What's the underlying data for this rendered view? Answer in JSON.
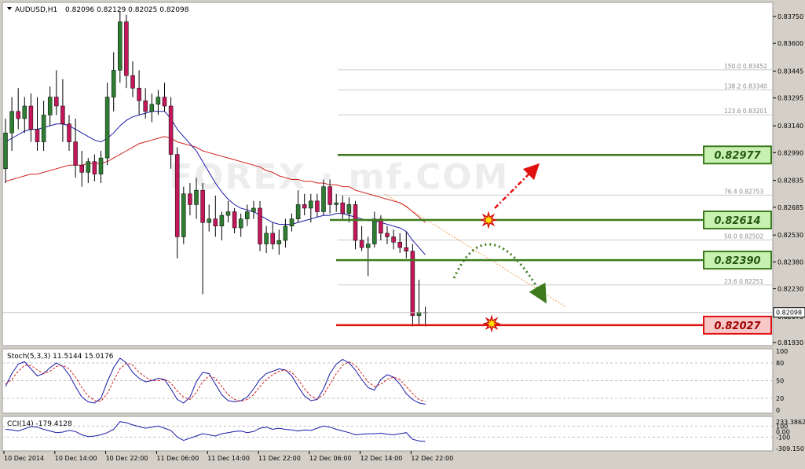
{
  "header": {
    "symbol": "AUDUSD,H1",
    "ohlc": "0.82096 0.82129 0.82025 0.82098"
  },
  "colors": {
    "bull": "#2e7d32",
    "bear": "#c2185b",
    "ma_fast": "#1a1aa8",
    "ma_slow": "#d02020",
    "level_green": "#3c7a1c",
    "level_red": "#e01010",
    "label_green_fill": "#c8f0b0",
    "label_red_fill": "#f8c8c8",
    "fib_line": "#cccccc",
    "trend": "#f0a050"
  },
  "watermark": "FOREX · mf.COM",
  "chart_data": [
    {
      "type": "candlestick",
      "panel": "main",
      "ylim": [
        0.8193,
        0.8382
      ],
      "price_ticks": [
        "0.83750",
        "0.83600",
        "0.83445",
        "0.83295",
        "0.83140",
        "0.82990",
        "0.82835",
        "0.82685",
        "0.82530",
        "0.82380",
        "0.82230",
        "0.82075",
        "0.81930"
      ],
      "current_price": "0.82098",
      "x_ticks": [
        "10 Dec 2014",
        "10 Dec 14:00",
        "10 Dec 22:00",
        "11 Dec 06:00",
        "11 Dec 14:00",
        "11 Dec 22:00",
        "12 Dec 06:00",
        "12 Dec 14:00",
        "12 Dec 22:00"
      ],
      "candles": [
        [
          0.829,
          0.8318,
          0.8282,
          0.831
        ],
        [
          0.831,
          0.833,
          0.83,
          0.8322
        ],
        [
          0.8322,
          0.8335,
          0.8312,
          0.8318
        ],
        [
          0.8318,
          0.833,
          0.831,
          0.8325
        ],
        [
          0.8325,
          0.8332,
          0.8305,
          0.8312
        ],
        [
          0.8312,
          0.833,
          0.83,
          0.8305
        ],
        [
          0.8305,
          0.8328,
          0.83,
          0.832
        ],
        [
          0.832,
          0.8336,
          0.8314,
          0.833
        ],
        [
          0.833,
          0.8345,
          0.832,
          0.8325
        ],
        [
          0.8325,
          0.834,
          0.8305,
          0.8315
        ],
        [
          0.8315,
          0.832,
          0.83,
          0.8305
        ],
        [
          0.8305,
          0.8318,
          0.8285,
          0.8292
        ],
        [
          0.8292,
          0.83,
          0.828,
          0.8288
        ],
        [
          0.8288,
          0.8296,
          0.8282,
          0.8294
        ],
        [
          0.8294,
          0.8298,
          0.8283,
          0.8287
        ],
        [
          0.8287,
          0.83,
          0.8282,
          0.8296
        ],
        [
          0.8296,
          0.8338,
          0.8292,
          0.833
        ],
        [
          0.833,
          0.8355,
          0.8322,
          0.8345
        ],
        [
          0.8345,
          0.8378,
          0.8338,
          0.8372
        ],
        [
          0.8372,
          0.8376,
          0.8335,
          0.8342
        ],
        [
          0.8342,
          0.835,
          0.833,
          0.8335
        ],
        [
          0.8335,
          0.8345,
          0.832,
          0.8328
        ],
        [
          0.8328,
          0.8335,
          0.8318,
          0.8322
        ],
        [
          0.8322,
          0.8332,
          0.8316,
          0.8326
        ],
        [
          0.8326,
          0.8334,
          0.832,
          0.833
        ],
        [
          0.833,
          0.8338,
          0.8322,
          0.8325
        ],
        [
          0.8325,
          0.833,
          0.829,
          0.8298
        ],
        [
          0.8298,
          0.8302,
          0.824,
          0.8252
        ],
        [
          0.8252,
          0.828,
          0.8248,
          0.8276
        ],
        [
          0.8276,
          0.8282,
          0.8264,
          0.827
        ],
        [
          0.827,
          0.8285,
          0.8262,
          0.8278
        ],
        [
          0.8278,
          0.8282,
          0.822,
          0.826
        ],
        [
          0.826,
          0.827,
          0.8255,
          0.8262
        ],
        [
          0.8262,
          0.8275,
          0.8252,
          0.8258
        ],
        [
          0.8258,
          0.8266,
          0.825,
          0.8264
        ],
        [
          0.8264,
          0.8272,
          0.826,
          0.8266
        ],
        [
          0.8266,
          0.8268,
          0.8254,
          0.8257
        ],
        [
          0.8257,
          0.8265,
          0.8252,
          0.8262
        ],
        [
          0.8262,
          0.827,
          0.8258,
          0.8266
        ],
        [
          0.8266,
          0.8272,
          0.8262,
          0.8268
        ],
        [
          0.8268,
          0.8272,
          0.8244,
          0.8248
        ],
        [
          0.8248,
          0.8258,
          0.8243,
          0.8254
        ],
        [
          0.8254,
          0.826,
          0.8245,
          0.8248
        ],
        [
          0.8248,
          0.8256,
          0.8242,
          0.825
        ],
        [
          0.825,
          0.8262,
          0.8246,
          0.8258
        ],
        [
          0.8258,
          0.8265,
          0.8255,
          0.8262
        ],
        [
          0.8262,
          0.8278,
          0.826,
          0.827
        ],
        [
          0.827,
          0.8276,
          0.8264,
          0.8268
        ],
        [
          0.8268,
          0.8276,
          0.826,
          0.8272
        ],
        [
          0.8272,
          0.8276,
          0.8263,
          0.8266
        ],
        [
          0.8266,
          0.8284,
          0.8264,
          0.828
        ],
        [
          0.828,
          0.8284,
          0.8265,
          0.827
        ],
        [
          0.827,
          0.8276,
          0.8266,
          0.8271
        ],
        [
          0.8271,
          0.8275,
          0.8262,
          0.8265
        ],
        [
          0.8265,
          0.8274,
          0.826,
          0.827
        ],
        [
          0.827,
          0.8272,
          0.8245,
          0.825
        ],
        [
          0.825,
          0.8258,
          0.8244,
          0.8246
        ],
        [
          0.8246,
          0.8252,
          0.823,
          0.8248
        ],
        [
          0.8248,
          0.8266,
          0.8246,
          0.8262
        ],
        [
          0.8262,
          0.8264,
          0.825,
          0.8254
        ],
        [
          0.8254,
          0.8258,
          0.8248,
          0.8252
        ],
        [
          0.8252,
          0.8256,
          0.8245,
          0.8249
        ],
        [
          0.8249,
          0.8254,
          0.8243,
          0.8246
        ],
        [
          0.8246,
          0.8255,
          0.824,
          0.8244
        ],
        [
          0.8244,
          0.8248,
          0.8202,
          0.8208
        ],
        [
          0.8208,
          0.8228,
          0.8203,
          0.821
        ],
        [
          0.821,
          0.8213,
          0.8202,
          0.821
        ]
      ],
      "ma_fast": [
        0.8305,
        0.8307,
        0.8309,
        0.8311,
        0.8312,
        0.8312,
        0.8313,
        0.8314,
        0.8315,
        0.8315,
        0.8314,
        0.8312,
        0.831,
        0.8308,
        0.8306,
        0.8305,
        0.8307,
        0.831,
        0.8314,
        0.8317,
        0.8319,
        0.832,
        0.8321,
        0.8322,
        0.8322,
        0.8322,
        0.8318,
        0.8312,
        0.8308,
        0.8304,
        0.83,
        0.8294,
        0.8288,
        0.8282,
        0.8277,
        0.8273,
        0.827,
        0.8268,
        0.8267,
        0.8266,
        0.8264,
        0.8262,
        0.826,
        0.8259,
        0.8259,
        0.8259,
        0.826,
        0.8261,
        0.8262,
        0.8263,
        0.8264,
        0.8264,
        0.8265,
        0.8265,
        0.8264,
        0.8263,
        0.8262,
        0.8261,
        0.8261,
        0.826,
        0.8259,
        0.8258,
        0.8257,
        0.8255,
        0.825,
        0.8246,
        0.8242
      ],
      "ma_slow": [
        0.8283,
        0.8284,
        0.8285,
        0.8286,
        0.8287,
        0.8287,
        0.8288,
        0.8289,
        0.829,
        0.8291,
        0.8292,
        0.8292,
        0.8292,
        0.8293,
        0.8293,
        0.8293,
        0.8294,
        0.8296,
        0.8298,
        0.83,
        0.8302,
        0.8304,
        0.8305,
        0.8306,
        0.8307,
        0.8308,
        0.8307,
        0.8305,
        0.8304,
        0.8303,
        0.8302,
        0.83,
        0.8299,
        0.8298,
        0.8297,
        0.8296,
        0.8295,
        0.8294,
        0.8293,
        0.8292,
        0.8291,
        0.8289,
        0.8288,
        0.8286,
        0.8285,
        0.8284,
        0.8284,
        0.8283,
        0.8283,
        0.8282,
        0.8282,
        0.8281,
        0.8281,
        0.828,
        0.828,
        0.8278,
        0.8277,
        0.8276,
        0.8275,
        0.8274,
        0.8273,
        0.8272,
        0.8271,
        0.8269,
        0.8266,
        0.8263,
        0.826
      ],
      "fib_levels": [
        {
          "label": "150.0",
          "price": "0.83452"
        },
        {
          "label": "138.2",
          "price": "0.83340"
        },
        {
          "label": "123.6",
          "price": "0.83201"
        },
        {
          "label": "76.4",
          "price": "0.82753"
        },
        {
          "label": "50.0",
          "price": "0.82502"
        },
        {
          "label": "23.6",
          "price": "0.82251"
        }
      ],
      "levels": [
        {
          "value": "0.82977",
          "kind": "resistance"
        },
        {
          "value": "0.82614",
          "kind": "resistance"
        },
        {
          "value": "0.82390",
          "kind": "support"
        },
        {
          "value": "0.82027",
          "kind": "support"
        }
      ]
    },
    {
      "type": "line",
      "panel": "stochastic",
      "title": "Stoch(5,3,3) 11.5144 15.0176",
      "ylim": [
        0,
        100
      ],
      "y_ticks": [
        "100",
        "80",
        "50",
        "20",
        "0"
      ],
      "main": [
        40,
        62,
        78,
        82,
        70,
        58,
        62,
        72,
        80,
        74,
        60,
        40,
        22,
        14,
        12,
        20,
        48,
        72,
        88,
        80,
        64,
        54,
        48,
        50,
        54,
        52,
        36,
        18,
        12,
        22,
        48,
        64,
        62,
        44,
        26,
        16,
        14,
        16,
        22,
        36,
        52,
        62,
        66,
        70,
        68,
        58,
        40,
        24,
        16,
        18,
        36,
        62,
        78,
        86,
        80,
        68,
        52,
        38,
        34,
        52,
        60,
        56,
        44,
        28,
        18,
        12,
        10
      ],
      "signal": [
        44,
        52,
        66,
        76,
        76,
        68,
        62,
        66,
        74,
        76,
        70,
        56,
        38,
        24,
        16,
        15,
        28,
        50,
        70,
        80,
        76,
        64,
        56,
        50,
        50,
        52,
        46,
        32,
        22,
        18,
        30,
        48,
        58,
        54,
        40,
        26,
        18,
        15,
        18,
        26,
        40,
        52,
        60,
        66,
        68,
        64,
        52,
        36,
        24,
        19,
        26,
        44,
        62,
        76,
        82,
        76,
        62,
        48,
        40,
        44,
        52,
        56,
        52,
        40,
        28,
        18,
        15
      ]
    },
    {
      "type": "line",
      "panel": "cci",
      "title": "CCI(14) -179.4128",
      "ylim": [
        -309.1501,
        233.3862
      ],
      "y_ticks": [
        "233.3862",
        "100",
        "0.00",
        "-100",
        "-309.1501"
      ],
      "values": [
        40,
        30,
        10,
        50,
        90,
        80,
        40,
        10,
        -20,
        -10,
        20,
        0,
        -60,
        -90,
        -80,
        -60,
        -20,
        40,
        180,
        160,
        120,
        90,
        60,
        80,
        100,
        60,
        20,
        -100,
        -160,
        -120,
        -80,
        -40,
        -60,
        -80,
        -40,
        -20,
        0,
        10,
        -20,
        0,
        60,
        80,
        40,
        60,
        40,
        30,
        10,
        30,
        20,
        60,
        100,
        80,
        40,
        10,
        -20,
        -60,
        -50,
        -40,
        -40,
        -30,
        -50,
        -60,
        -40,
        -20,
        -140,
        -170,
        -180
      ]
    }
  ]
}
